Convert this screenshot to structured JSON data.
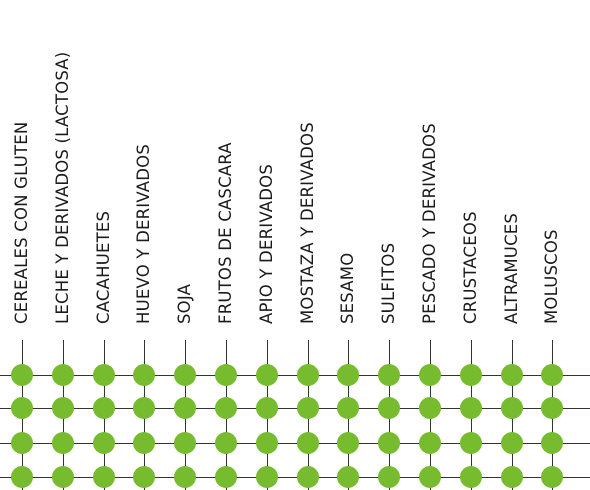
{
  "colors": {
    "marker": "#77bb2f",
    "line": "#333333",
    "text": "#1a1a1a"
  },
  "allergens": [
    "CEREALES CON GLUTEN",
    "LECHE Y DERIVADOS (LACTOSA)",
    "CACAHUETES",
    "HUEVO Y DERIVADOS",
    "SOJA",
    "FRUTOS DE CASCARA",
    "APIO Y DERIVADOS",
    "MOSTAZA Y DERIVADOS",
    "SESAMO",
    "SULFITOS",
    "PESCADO Y DERIVADOS",
    "CRUSTACEOS",
    "ALTRAMUCES",
    "MOLUSCOS"
  ],
  "rows": [
    {
      "contains": [
        true,
        true,
        true,
        true,
        true,
        true,
        true,
        true,
        true,
        true,
        true,
        true,
        true,
        true
      ]
    },
    {
      "contains": [
        true,
        true,
        true,
        true,
        true,
        true,
        true,
        true,
        true,
        true,
        true,
        true,
        true,
        true
      ]
    },
    {
      "contains": [
        true,
        true,
        true,
        true,
        true,
        true,
        true,
        true,
        true,
        true,
        true,
        true,
        true,
        true
      ]
    },
    {
      "contains": [
        true,
        true,
        true,
        true,
        true,
        true,
        true,
        true,
        true,
        true,
        true,
        true,
        true,
        true
      ]
    }
  ]
}
